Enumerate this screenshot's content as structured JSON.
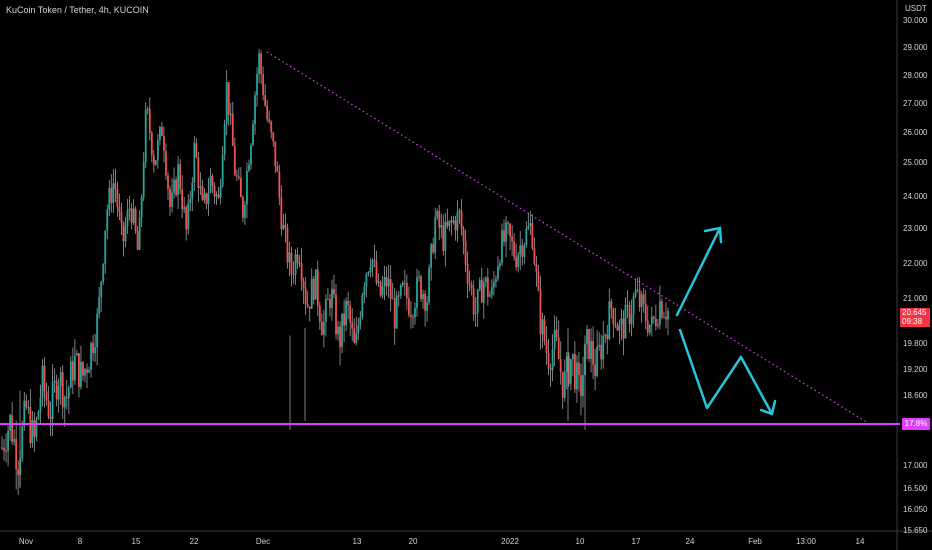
{
  "header": {
    "title": "KuCoin Token / Tether, 4h, KUCOIN"
  },
  "currency": "USDT",
  "current_price": {
    "value": "20.645",
    "countdown": "09:38"
  },
  "support_label": "17.8%",
  "chart_data": {
    "type": "candlestick",
    "title": "KuCoin Token / Tether, 4h, KUCOIN",
    "y_ticks": [
      "30.000",
      "29.000",
      "28.000",
      "27.000",
      "26.000",
      "25.000",
      "24.000",
      "23.000",
      "22.000",
      "21.000",
      "19.800",
      "19.200",
      "18.600",
      "18.000",
      "17.000",
      "16.500",
      "16.050",
      "15.650"
    ],
    "x_ticks": [
      "Nov",
      "8",
      "15",
      "22",
      "Dec",
      "13",
      "20",
      "2022",
      "10",
      "17",
      "24",
      "Feb",
      "13:00",
      "14"
    ],
    "price_path": [
      [
        0,
        17.4
      ],
      [
        2,
        18.0
      ],
      [
        4,
        17.1
      ],
      [
        6,
        18.3
      ],
      [
        8,
        17.5
      ],
      [
        10,
        18.9
      ],
      [
        12,
        18.2
      ],
      [
        14,
        19.1
      ],
      [
        16,
        18.5
      ],
      [
        18,
        19.4
      ],
      [
        20,
        19.0
      ],
      [
        22,
        19.6
      ],
      [
        24,
        20.5
      ],
      [
        26,
        23.5
      ],
      [
        28,
        24.5
      ],
      [
        30,
        22.5
      ],
      [
        32,
        23.8
      ],
      [
        34,
        22.2
      ],
      [
        36,
        26.8
      ],
      [
        38,
        25.0
      ],
      [
        40,
        26.2
      ],
      [
        42,
        23.5
      ],
      [
        44,
        24.8
      ],
      [
        46,
        22.8
      ],
      [
        48,
        25.5
      ],
      [
        50,
        23.5
      ],
      [
        52,
        24.5
      ],
      [
        54,
        23.8
      ],
      [
        56,
        27.6
      ],
      [
        58,
        24.8
      ],
      [
        60,
        23.5
      ],
      [
        62,
        25.8
      ],
      [
        64,
        28.7
      ],
      [
        66,
        26.5
      ],
      [
        68,
        25.2
      ],
      [
        70,
        23.0
      ],
      [
        72,
        21.7
      ],
      [
        74,
        22.5
      ],
      [
        76,
        20.8
      ],
      [
        78,
        21.5
      ],
      [
        80,
        20.2
      ],
      [
        82,
        21.2
      ],
      [
        84,
        19.8
      ],
      [
        86,
        20.8
      ],
      [
        88,
        19.5
      ],
      [
        90,
        21.5
      ],
      [
        92,
        22.3
      ],
      [
        94,
        21.0
      ],
      [
        96,
        21.5
      ],
      [
        98,
        20.5
      ],
      [
        100,
        21.2
      ],
      [
        102,
        20.8
      ],
      [
        104,
        21.4
      ],
      [
        106,
        21.0
      ],
      [
        108,
        23.3
      ],
      [
        110,
        22.7
      ],
      [
        112,
        23.1
      ],
      [
        114,
        23.4
      ],
      [
        116,
        21.8
      ],
      [
        118,
        20.6
      ],
      [
        120,
        21.5
      ],
      [
        122,
        21.0
      ],
      [
        124,
        22.4
      ],
      [
        126,
        22.8
      ],
      [
        128,
        22.2
      ],
      [
        130,
        22.7
      ],
      [
        132,
        23.1
      ],
      [
        134,
        20.5
      ],
      [
        136,
        19.5
      ],
      [
        138,
        19.8
      ],
      [
        140,
        18.8
      ],
      [
        142,
        19.5
      ],
      [
        144,
        18.6
      ],
      [
        146,
        19.9
      ],
      [
        148,
        19.2
      ],
      [
        150,
        20.0
      ],
      [
        152,
        20.8
      ],
      [
        154,
        20.1
      ],
      [
        156,
        20.5
      ],
      [
        158,
        21.1
      ],
      [
        160,
        20.6
      ],
      [
        162,
        20.2
      ],
      [
        164,
        20.9
      ],
      [
        166,
        20.645
      ]
    ],
    "support_level": 17.8,
    "resistance_trendline": {
      "from": [
        22,
        28.85
      ],
      "to": [
        14,
        17.8
      ]
    },
    "projections": [
      {
        "type": "up-arrow",
        "from": 20.7,
        "to": 23.0
      },
      {
        "type": "zigzag-down",
        "points": [
          20.3,
          18.1,
          19.75,
          17.95
        ]
      }
    ],
    "legend": "none",
    "grid": false
  }
}
